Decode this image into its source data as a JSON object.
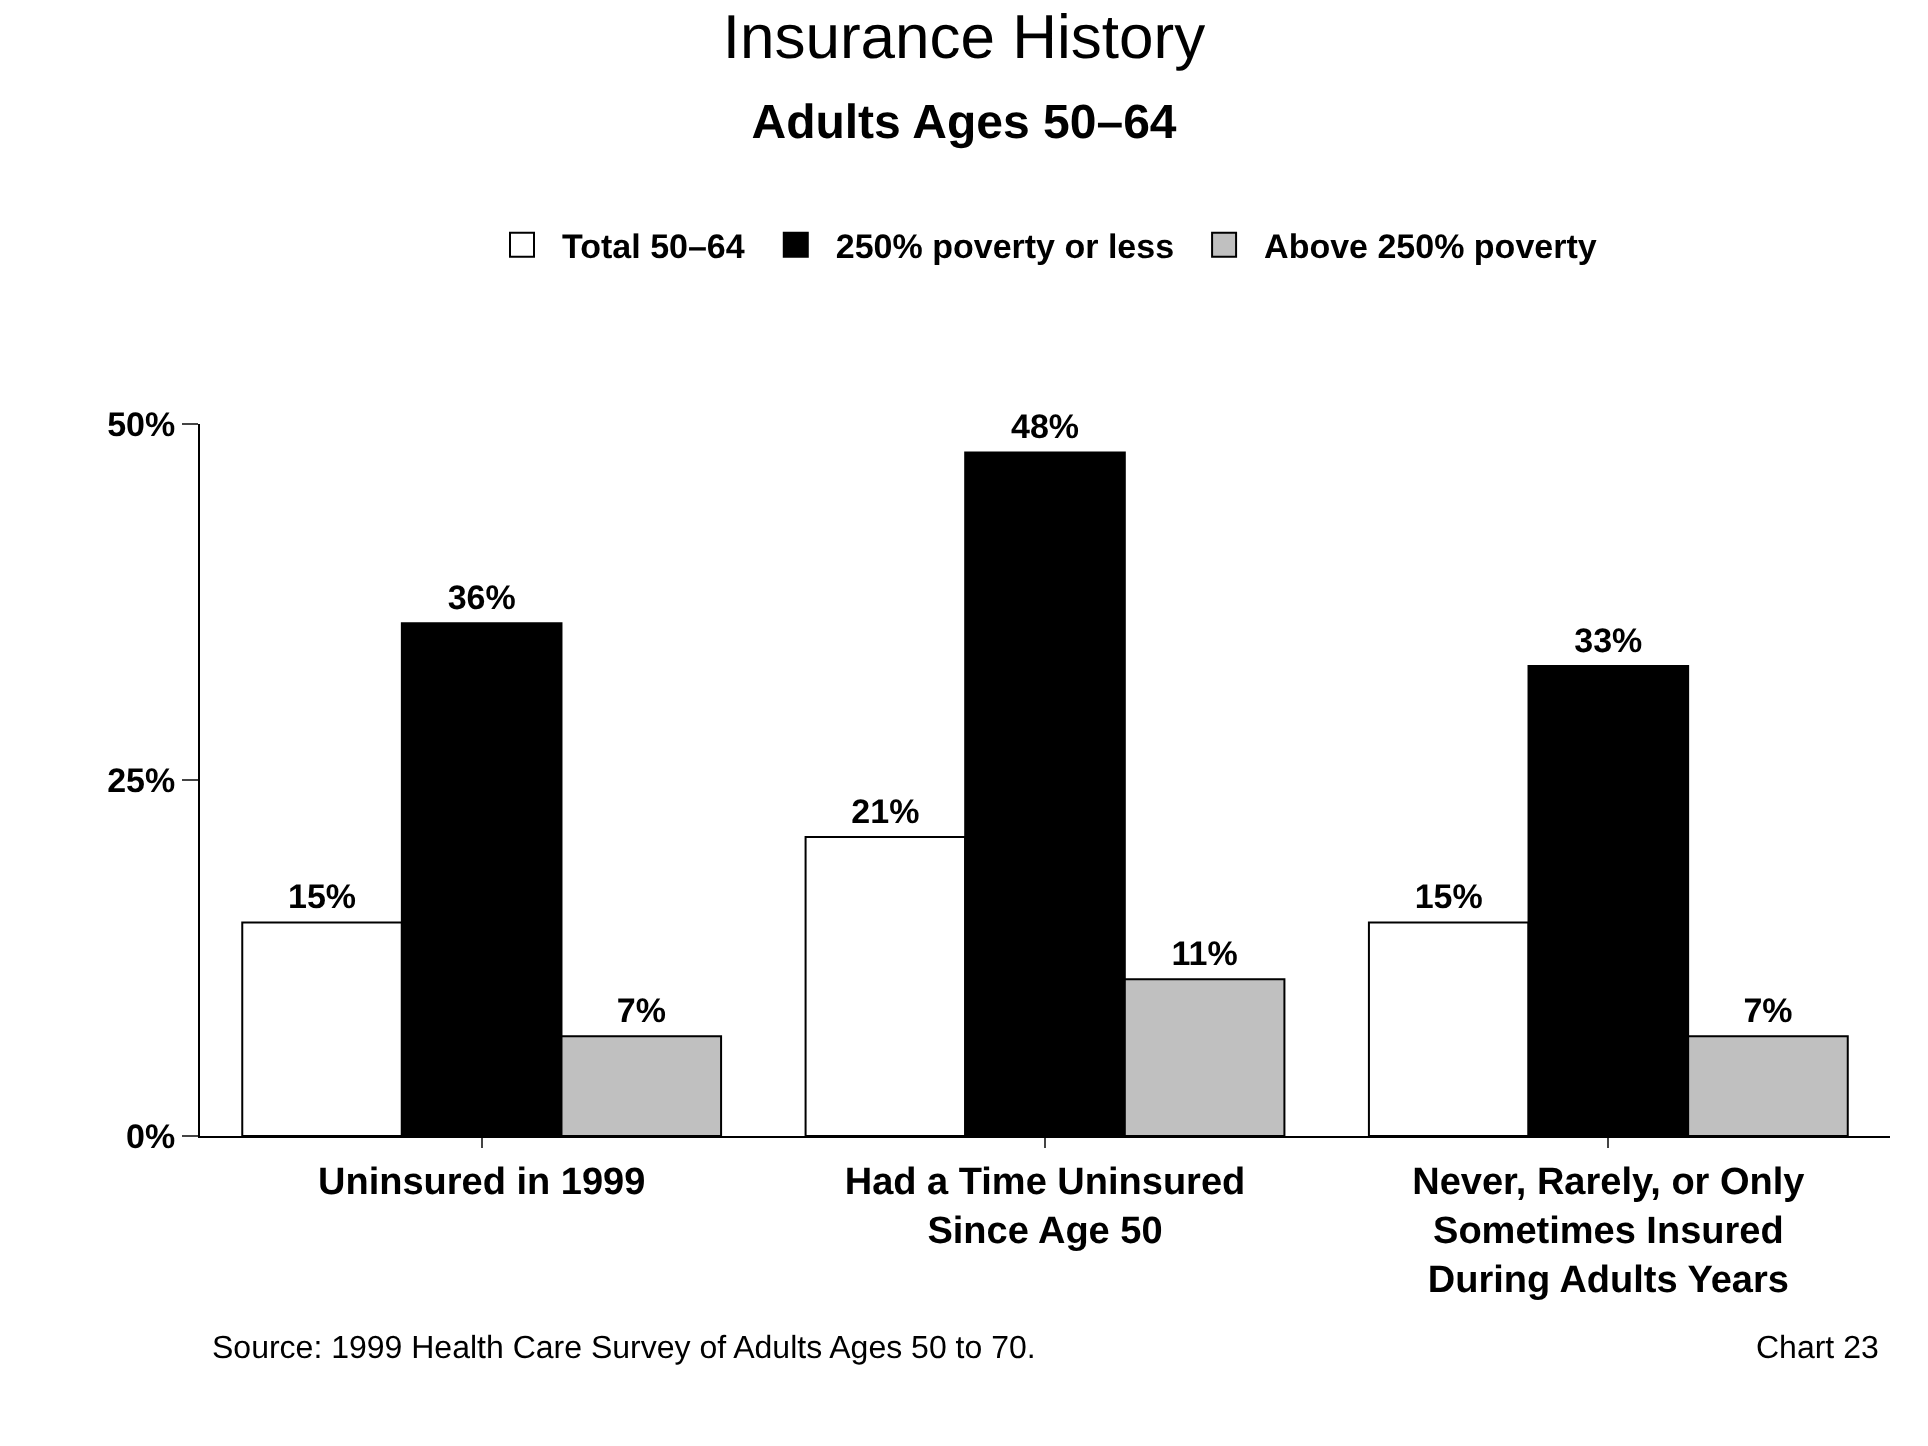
{
  "chart_data": {
    "type": "bar",
    "title": "Insurance History",
    "subtitle": "Adults Ages 50–64",
    "categories": [
      "Uninsured in 1999",
      "Had a Time Uninsured Since Age 50",
      "Never, Rarely, or Only Sometimes Insured During Adults Years"
    ],
    "series": [
      {
        "name": "Total 50–64",
        "color": "#ffffff",
        "values": [
          15,
          21,
          15
        ],
        "value_labels": [
          "15%",
          "21%",
          "15%"
        ]
      },
      {
        "name": "250% poverty or less",
        "color": "#000000",
        "values": [
          36,
          48,
          33
        ],
        "value_labels": [
          "36%",
          "48%",
          "33%"
        ]
      },
      {
        "name": "Above 250% poverty",
        "color": "#c0c0c0",
        "values": [
          7,
          11,
          7
        ],
        "value_labels": [
          "7%",
          "11%",
          "7%"
        ]
      }
    ],
    "ylim": [
      0,
      50
    ],
    "yticks": [
      {
        "value": 0,
        "label": "0%"
      },
      {
        "value": 25,
        "label": "25%"
      },
      {
        "value": 50,
        "label": "50%"
      }
    ],
    "legend": "top",
    "annotations": [
      "Source: 1999 Health Care Survey of Adults Ages 50 to 70.",
      "Chart 23"
    ]
  }
}
